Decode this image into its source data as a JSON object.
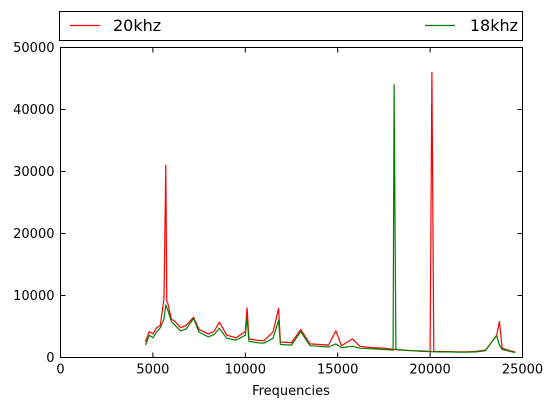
{
  "chart_data": {
    "type": "line",
    "title": "",
    "xlabel": "Frequencies",
    "ylabel": "",
    "xlim": [
      0,
      25000
    ],
    "ylim": [
      0,
      50000
    ],
    "x_ticks": [
      0,
      5000,
      10000,
      15000,
      20000,
      25000
    ],
    "y_ticks": [
      0,
      10000,
      20000,
      30000,
      40000,
      50000
    ],
    "grid": false,
    "legend_position": "top, above plot, spanning width",
    "series": [
      {
        "name": "20khz",
        "color": "#ff0000",
        "points": [
          [
            4600,
            2500
          ],
          [
            4800,
            4200
          ],
          [
            5000,
            3800
          ],
          [
            5200,
            4800
          ],
          [
            5400,
            5200
          ],
          [
            5600,
            9500
          ],
          [
            5700,
            31000
          ],
          [
            5750,
            9000
          ],
          [
            5800,
            8800
          ],
          [
            6000,
            6200
          ],
          [
            6200,
            5800
          ],
          [
            6500,
            4800
          ],
          [
            6800,
            5200
          ],
          [
            7200,
            6500
          ],
          [
            7500,
            4500
          ],
          [
            8000,
            3800
          ],
          [
            8300,
            4200
          ],
          [
            8600,
            5700
          ],
          [
            9000,
            3600
          ],
          [
            9500,
            3200
          ],
          [
            10000,
            4200
          ],
          [
            10100,
            8000
          ],
          [
            10200,
            3000
          ],
          [
            10600,
            2800
          ],
          [
            11000,
            2700
          ],
          [
            11500,
            4100
          ],
          [
            11800,
            7900
          ],
          [
            11900,
            2500
          ],
          [
            12500,
            2400
          ],
          [
            13000,
            4500
          ],
          [
            13500,
            2200
          ],
          [
            14000,
            2100
          ],
          [
            14500,
            2000
          ],
          [
            14900,
            4300
          ],
          [
            15200,
            1900
          ],
          [
            15800,
            3000
          ],
          [
            16200,
            1800
          ],
          [
            16800,
            1600
          ],
          [
            17500,
            1500
          ],
          [
            18000,
            1300
          ],
          [
            18500,
            1200
          ],
          [
            19000,
            1100
          ],
          [
            19500,
            1050
          ],
          [
            20000,
            1000
          ],
          [
            20100,
            46000
          ],
          [
            20200,
            1000
          ],
          [
            20800,
            950
          ],
          [
            21500,
            900
          ],
          [
            22000,
            900
          ],
          [
            22500,
            1000
          ],
          [
            23000,
            1200
          ],
          [
            23600,
            3500
          ],
          [
            23750,
            5800
          ],
          [
            23900,
            1500
          ],
          [
            24300,
            1100
          ],
          [
            24600,
            900
          ]
        ]
      },
      {
        "name": "18khz",
        "color": "#008000",
        "points": [
          [
            4600,
            2000
          ],
          [
            4800,
            3600
          ],
          [
            5000,
            3200
          ],
          [
            5200,
            4100
          ],
          [
            5400,
            4800
          ],
          [
            5600,
            6200
          ],
          [
            5700,
            8500
          ],
          [
            5800,
            7700
          ],
          [
            6000,
            5800
          ],
          [
            6200,
            5200
          ],
          [
            6500,
            4300
          ],
          [
            6800,
            4600
          ],
          [
            7200,
            6300
          ],
          [
            7500,
            4100
          ],
          [
            8000,
            3300
          ],
          [
            8300,
            3700
          ],
          [
            8600,
            4700
          ],
          [
            9000,
            3100
          ],
          [
            9500,
            2800
          ],
          [
            10000,
            3600
          ],
          [
            10100,
            6400
          ],
          [
            10200,
            2600
          ],
          [
            10600,
            2400
          ],
          [
            11000,
            2300
          ],
          [
            11500,
            3100
          ],
          [
            11800,
            6000
          ],
          [
            11900,
            2100
          ],
          [
            12500,
            2000
          ],
          [
            13000,
            4200
          ],
          [
            13500,
            1900
          ],
          [
            14000,
            1800
          ],
          [
            14500,
            1700
          ],
          [
            14900,
            2200
          ],
          [
            15200,
            1600
          ],
          [
            15800,
            1800
          ],
          [
            16200,
            1500
          ],
          [
            16800,
            1400
          ],
          [
            17500,
            1300
          ],
          [
            18000,
            1200
          ],
          [
            18050,
            44000
          ],
          [
            18150,
            1300
          ],
          [
            18600,
            1200
          ],
          [
            19000,
            1100
          ],
          [
            19500,
            1000
          ],
          [
            20000,
            950
          ],
          [
            20500,
            900
          ],
          [
            21000,
            900
          ],
          [
            21500,
            850
          ],
          [
            22000,
            850
          ],
          [
            22500,
            900
          ],
          [
            23000,
            1100
          ],
          [
            23600,
            3600
          ],
          [
            23750,
            2000
          ],
          [
            23900,
            1300
          ],
          [
            24300,
            1000
          ],
          [
            24600,
            800
          ]
        ]
      }
    ]
  }
}
